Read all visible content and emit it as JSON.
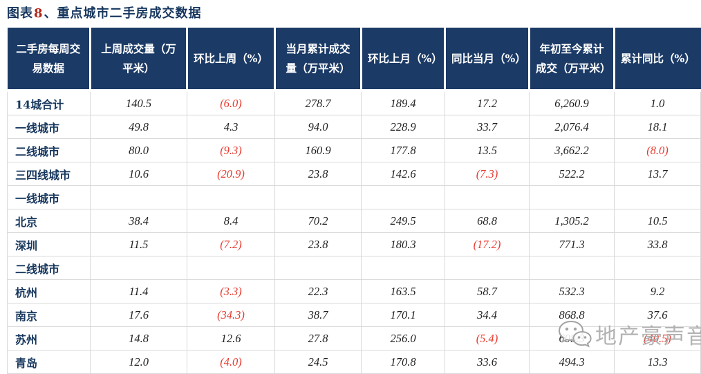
{
  "title": {
    "prefix": "图表",
    "number": "8",
    "suffix": "、重点城市二手房成交数据"
  },
  "watermark": {
    "icon": "wechat-icon",
    "text": "地产豪声音"
  },
  "colors": {
    "header_bg": "#1B3A66",
    "label_text": "#17375E",
    "number_text": "#1F1F1F",
    "negative_text": "#E8392D",
    "title_text": "#17375E",
    "title_number": "#B02418",
    "grid_line": "#D9D9D9",
    "watermark_gray": "#A9A9A9"
  },
  "chart_data": {
    "type": "table",
    "title": "图表8、重点城市二手房成交数据",
    "note": "values in parentheses are negative and shown in red",
    "columns": [
      "二手房每周交易数据",
      "上周成交量（万平米）",
      "环比上周（%）",
      "当月累计成交量（万平米）",
      "环比上月（%）",
      "同比当月（%）",
      "年初至今累计成交（万平米）",
      "累计同比（%）"
    ],
    "rows": [
      {
        "label": "14城合计",
        "values": [
          "140.5",
          "(6.0)",
          "278.7",
          "189.4",
          "17.2",
          "6,260.9",
          "1.0"
        ]
      },
      {
        "label": "一线城市",
        "values": [
          "49.8",
          "4.3",
          "94.0",
          "228.9",
          "33.7",
          "2,076.4",
          "18.1"
        ]
      },
      {
        "label": "二线城市",
        "values": [
          "80.0",
          "(9.3)",
          "160.9",
          "177.8",
          "13.5",
          "3,662.2",
          "(8.0)"
        ]
      },
      {
        "label": "三四线城市",
        "values": [
          "10.6",
          "(20.9)",
          "23.8",
          "142.6",
          "(7.3)",
          "522.2",
          "13.7"
        ]
      },
      {
        "label": "一线城市",
        "values": [
          "",
          "",
          "",
          "",
          "",
          "",
          ""
        ]
      },
      {
        "label": "北京",
        "values": [
          "38.4",
          "8.4",
          "70.2",
          "249.5",
          "68.8",
          "1,305.2",
          "10.5"
        ]
      },
      {
        "label": "深圳",
        "values": [
          "11.5",
          "(7.2)",
          "23.8",
          "180.3",
          "(17.2)",
          "771.3",
          "33.8"
        ]
      },
      {
        "label": "二线城市",
        "values": [
          "",
          "",
          "",
          "",
          "",
          "",
          ""
        ]
      },
      {
        "label": "杭州",
        "values": [
          "11.4",
          "(3.3)",
          "22.3",
          "163.5",
          "58.7",
          "532.3",
          "9.2"
        ]
      },
      {
        "label": "南京",
        "values": [
          "17.6",
          "(34.3)",
          "38.7",
          "170.1",
          "34.4",
          "868.8",
          "37.6"
        ]
      },
      {
        "label": "苏州",
        "values": [
          "14.8",
          "12.6",
          "27.8",
          "256.0",
          "(5.4)",
          "608.3",
          "(40.5)"
        ]
      },
      {
        "label": "青岛",
        "values": [
          "12.0",
          "(4.0)",
          "24.5",
          "170.8",
          "33.6",
          "494.3",
          "13.3"
        ]
      }
    ]
  }
}
